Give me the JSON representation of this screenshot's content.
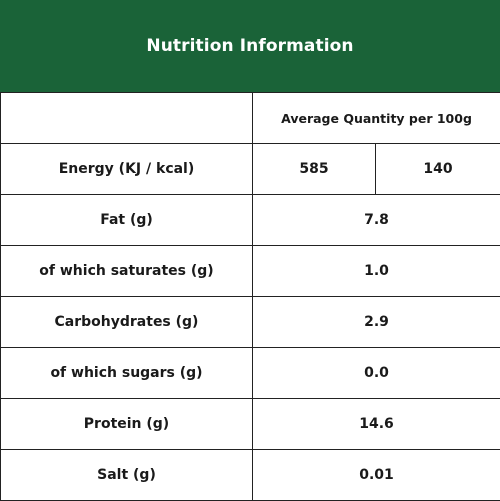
{
  "header": {
    "title": "Nutrition Information",
    "background": "#1a6338"
  },
  "table": {
    "column_header": "Average Quantity per 100g",
    "energy": {
      "label": "Energy (KJ / kcal)",
      "kj": "585",
      "kcal": "140"
    },
    "rows": [
      {
        "label": "Fat (g)",
        "value": "7.8"
      },
      {
        "label": "of which saturates (g)",
        "value": "1.0"
      },
      {
        "label": "Carbohydrates (g)",
        "value": "2.9"
      },
      {
        "label": "of which sugars (g)",
        "value": "0.0"
      },
      {
        "label": "Protein (g)",
        "value": "14.6"
      },
      {
        "label": "Salt (g)",
        "value": "0.01"
      }
    ]
  }
}
